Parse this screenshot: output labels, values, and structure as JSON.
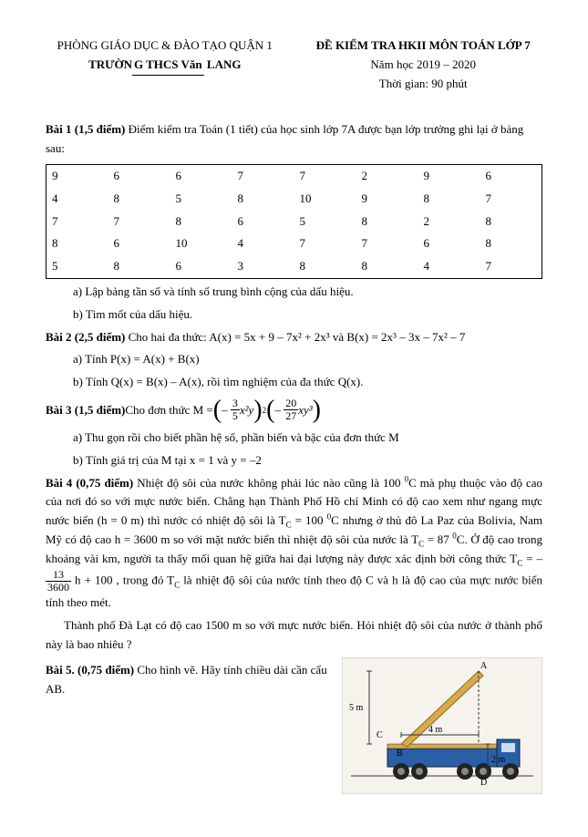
{
  "header": {
    "dept": "PHÒNG GIÁO DỤC & ĐÀO TẠO QUẬN 1",
    "school_prefix": "TRƯỜN",
    "school_underline": "G THCS Văn",
    "school_suffix": " LANG",
    "exam_title": "ĐỀ KIỂM TRA HKII MÔN TOÁN LỚP 7",
    "year": "Năm học 2019 – 2020",
    "time": "Thời gian: 90 phút"
  },
  "bai1": {
    "title": "Bài 1 (1,5 điểm)",
    "text1": " Điểm kiểm tra Toán (1 tiết) của học sinh lớp 7A được bạn lớp trưởng ghi lại ở bảng sau:",
    "rows": [
      [
        "9",
        "6",
        "6",
        "7",
        "7",
        "2",
        "9",
        "6"
      ],
      [
        "4",
        "8",
        "5",
        "8",
        "10",
        "9",
        "8",
        "7"
      ],
      [
        "7",
        "7",
        "8",
        "6",
        "5",
        "8",
        "2",
        "8"
      ],
      [
        "8",
        "6",
        "10",
        "4",
        "7",
        "7",
        "6",
        "8"
      ],
      [
        "5",
        "8",
        "6",
        "3",
        "8",
        "8",
        "4",
        "7"
      ]
    ],
    "a": "a)  Lập bảng tần số và tính số trung bình cộng của dấu hiệu.",
    "b": "b)  Tìm mốt của dấu hiệu."
  },
  "bai2": {
    "title": "Bài 2 (2,5 điểm)",
    "text": " Cho hai đa thức: A(x)  =  5x + 9 – 7x² + 2x³  và B(x)  =  2x³ – 3x – 7x² – 7",
    "a": "a) Tính P(x) = A(x) + B(x)",
    "b": "b) Tính Q(x) = B(x) – A(x), rồi tìm nghiệm của đa thức Q(x)."
  },
  "bai3": {
    "title": "Bài 3 (1,5 điểm)",
    "prefix": " Cho đơn thức M = ",
    "frac1num": "3",
    "frac1den": "5",
    "term1": "x²y",
    "exp1": "2",
    "frac2num": "20",
    "frac2den": "27",
    "term2": "xy³",
    "a": "a) Thu gọn rồi cho biết phần hệ số, phần biến và bậc của đơn thức M",
    "b": "b) Tính giá trị của M tại  x = 1 và  y = –2"
  },
  "bai4": {
    "title": "Bài 4 (0,75 điểm)",
    "p1a": " Nhiệt độ sôi của nước không phải lúc nào cũng là 100 ",
    "deg0": "0",
    "p1b": "C mà phụ thuộc vào độ cao của nơi đó so với mực nước biển. Chẳng hạn Thành Phố Hồ chí Minh có độ cao xem như ngang mực nước biển (h = 0 m) thì nước có nhiệt độ sôi là T",
    "subC": "C",
    "p1c": "  = 100 ",
    "p1d": "C nhưng ở thủ đô La Paz của Bolivia, Nam Mỹ có độ cao h = 3600 m so với mặt nước biển thì nhiệt độ sôi của nước là T",
    "p1e": " = 87 ",
    "p1f": "C. Ở độ cao trong khoảng vài km, người ta thấy mối quan hệ giữa hai đại lượng này được xác định bởi công thức T",
    "eq_pre": "  =  –",
    "fracTnum": "13",
    "fracTden": "3600",
    "eq_post": " h + 100 , trong đó  T",
    "p1g": " là nhiệt độ sôi của nước tính theo độ C và h là độ cao của mực nước biển tính theo mét.",
    "p2": "Thành phố Đà Lạt có độ cao 1500 m so với mực nước biển. Hỏi nhiệt độ sôi của nước ở thành phố này là bao nhiêu ?"
  },
  "bai5": {
    "title": "Bài 5. (0,75 điểm)",
    "text": " Cho hình vẽ. Hãy tính chiều dài cần cẩu AB.",
    "labels": {
      "A": "A",
      "B": "B",
      "C": "C",
      "D": "D",
      "dim5": "5 m",
      "dim4": "4 m",
      "dim2": "2 m"
    }
  }
}
